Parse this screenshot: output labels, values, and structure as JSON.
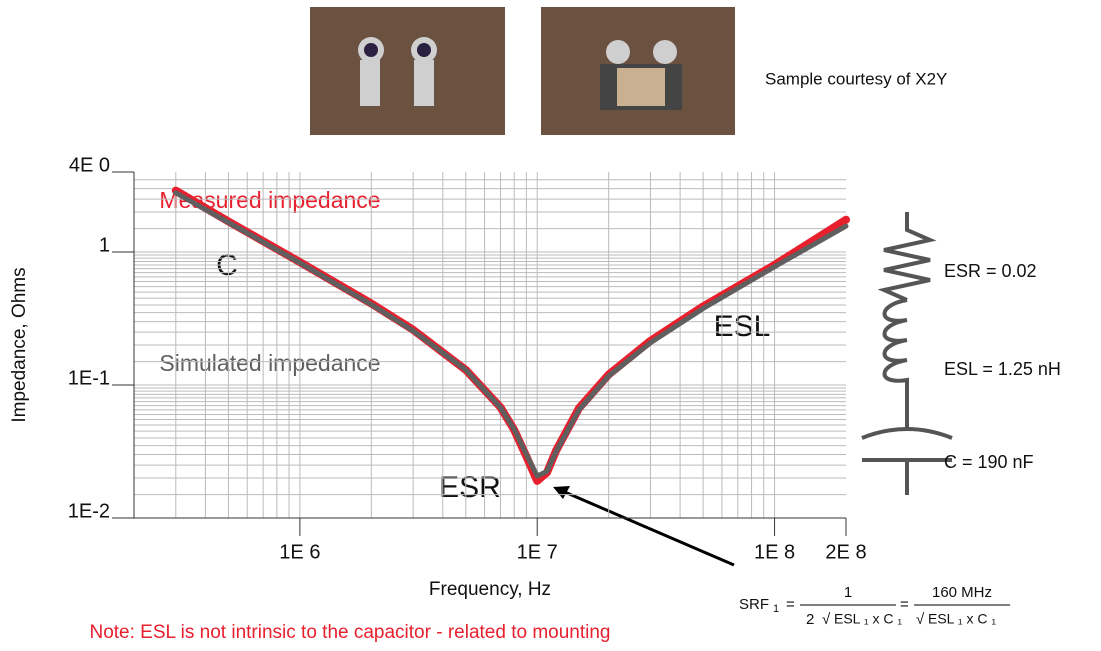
{
  "chart_data": {
    "type": "line",
    "x": [
      300000,
      500000,
      1000000,
      2000000,
      3000000,
      5000000,
      7000000,
      8000000,
      9000000,
      10000000,
      11000000,
      12000000,
      15000000,
      20000000,
      30000000,
      50000000,
      100000000,
      200000000
    ],
    "series": [
      {
        "name": "Measured impedance",
        "color": "#e8202e",
        "values": [
          2.9,
          1.7,
          0.84,
          0.41,
          0.26,
          0.13,
          0.068,
          0.046,
          0.029,
          0.019,
          0.022,
          0.032,
          0.067,
          0.12,
          0.215,
          0.39,
          0.8,
          1.75
        ]
      },
      {
        "name": "Simulated impedance",
        "color": "#5f5f5f",
        "values": [
          2.79,
          1.671,
          0.83,
          0.403,
          0.256,
          0.13,
          0.0677,
          0.0465,
          0.03,
          0.0207,
          0.0224,
          0.0315,
          0.0651,
          0.117,
          0.208,
          0.376,
          0.777,
          1.567
        ]
      }
    ],
    "x_label": "Frequency, Hz",
    "y_label": "Impedance, Ohms",
    "xlim": [
      200000,
      200000000
    ],
    "ylim": [
      0.01,
      4
    ],
    "xticks": [
      {
        "value": 1000000,
        "label": "1E 6"
      },
      {
        "value": 10000000,
        "label": "1E 7"
      },
      {
        "value": 100000000,
        "label": "1E 8"
      },
      {
        "value": 200000000,
        "label": "2E 8"
      }
    ],
    "yticks": [
      {
        "value": 0.01,
        "label": "1E-2"
      },
      {
        "value": 0.1,
        "label": "1E-1"
      },
      1,
      {
        "value": 4,
        "label": "4E 0"
      }
    ],
    "log_x": true,
    "log_y": true,
    "grid": true,
    "annotations": {
      "c": "C",
      "esl": "ESL",
      "esr": "ESR",
      "sample": "Sample courtesy of X2Y",
      "note": "Note: ESL is not intrinsic to the capacitor - related to mounting"
    },
    "circuit": {
      "esr": "ESR = 0.02",
      "esl": "ESL = 1.25 nH",
      "c": "C = 190 nF"
    },
    "formula": {
      "lhs": "SRF",
      "sub": "1",
      "eq": "=",
      "num1": "1",
      "den1_factor": "2",
      "root": "ESL ₁ x C ₁",
      "num2": "160  MHz"
    }
  }
}
